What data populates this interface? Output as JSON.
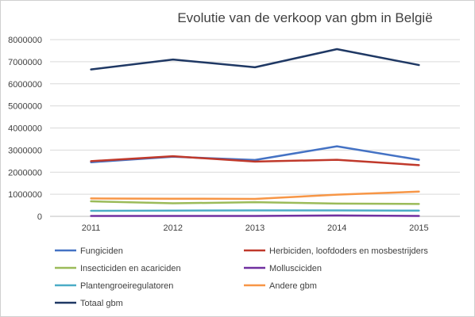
{
  "chart_data": {
    "type": "line",
    "title": "Evolutie van de verkoop van gbm in België",
    "xlabel": "",
    "ylabel": "",
    "categories": [
      "2011",
      "2012",
      "2013",
      "2014",
      "2015"
    ],
    "ylim": [
      0,
      8000000
    ],
    "yticks": [
      "0",
      "1000000",
      "2000000",
      "3000000",
      "4000000",
      "5000000",
      "6000000",
      "7000000",
      "8000000"
    ],
    "grid": true,
    "legend_position": "bottom",
    "series": [
      {
        "name": "Fungiciden",
        "color": "#4472C4",
        "values": [
          2450000,
          2700000,
          2550000,
          3170000,
          2560000
        ]
      },
      {
        "name": "Herbiciden, loofdoders en mosbestrijders",
        "color": "#C0392B",
        "values": [
          2500000,
          2720000,
          2480000,
          2560000,
          2320000
        ]
      },
      {
        "name": "Insecticiden en acariciden",
        "color": "#9BBB59",
        "values": [
          680000,
          590000,
          640000,
          580000,
          560000
        ]
      },
      {
        "name": "Mollusciciden",
        "color": "#7030A0",
        "values": [
          20000,
          20000,
          20000,
          40000,
          20000
        ]
      },
      {
        "name": "Plantengroeiregulatoren",
        "color": "#4BACC6",
        "values": [
          250000,
          260000,
          270000,
          270000,
          260000
        ]
      },
      {
        "name": "Andere gbm",
        "color": "#F79646",
        "values": [
          810000,
          800000,
          790000,
          980000,
          1120000
        ]
      },
      {
        "name": "Totaal gbm",
        "color": "#1F3864",
        "values": [
          6650000,
          7100000,
          6750000,
          7570000,
          6850000
        ]
      }
    ]
  }
}
